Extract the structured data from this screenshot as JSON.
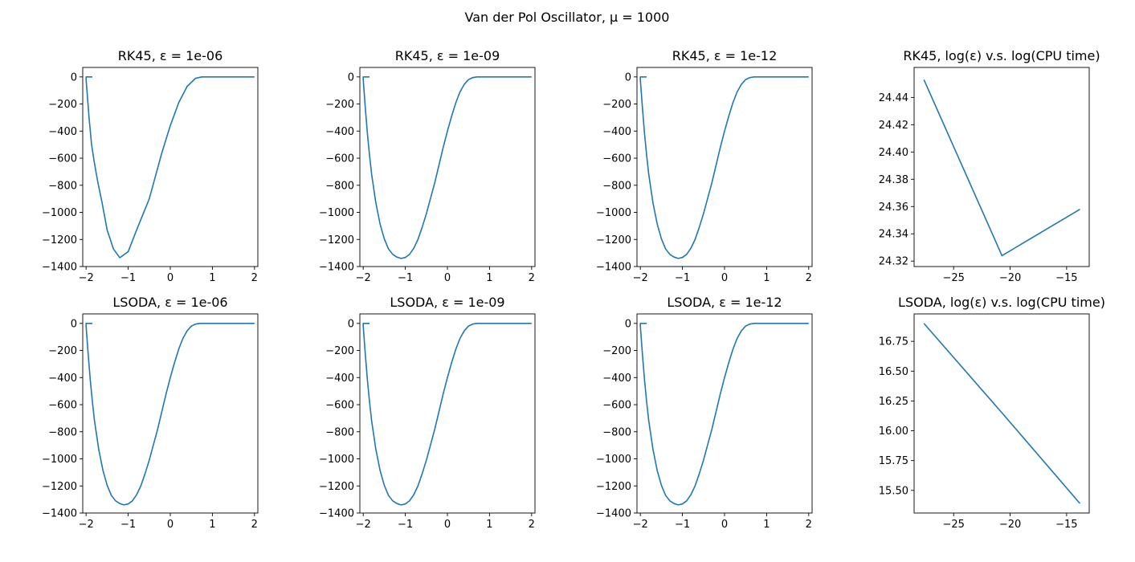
{
  "suptitle": "Van der Pol Oscillator, μ = 1000",
  "colors": {
    "line": "#1f77b4",
    "axes": "#000000"
  },
  "chart_data": [
    {
      "type": "line",
      "title": "RK45, ε = 1e-06",
      "xlim": [
        -2.08,
        2.08
      ],
      "ylim": [
        -1400,
        70
      ],
      "xticks": [
        -2,
        -1,
        0,
        1,
        2
      ],
      "xtick_labels": [
        "−2",
        "−1",
        "0",
        "1",
        "2"
      ],
      "yticks": [
        0,
        -200,
        -400,
        -600,
        -800,
        -1000,
        -1200,
        -1400
      ],
      "ytick_labels": [
        "0",
        "−200",
        "−400",
        "−600",
        "−800",
        "−1000",
        "−1200",
        "−1400"
      ],
      "x": [
        -1.85,
        -2.0,
        -2.0,
        -1.93,
        -1.87,
        -1.8,
        -1.72,
        -1.62,
        -1.5,
        -1.35,
        -1.2,
        -1.0,
        -0.8,
        -0.5,
        -0.2,
        0.0,
        0.2,
        0.4,
        0.6,
        0.75,
        0.88,
        0.95,
        1.0,
        1.2,
        1.6,
        2.0
      ],
      "y": [
        0,
        0,
        -20,
        -300,
        -500,
        -640,
        -780,
        -930,
        -1130,
        -1270,
        -1335,
        -1290,
        -1130,
        -900,
        -560,
        -360,
        -190,
        -70,
        -10,
        0,
        0,
        0,
        0,
        0,
        0,
        0
      ]
    },
    {
      "type": "line",
      "title": "RK45, ε = 1e-09",
      "xlim": [
        -2.08,
        2.08
      ],
      "ylim": [
        -1400,
        70
      ],
      "xticks": [
        -2,
        -1,
        0,
        1,
        2
      ],
      "xtick_labels": [
        "−2",
        "−1",
        "0",
        "1",
        "2"
      ],
      "yticks": [
        0,
        -200,
        -400,
        -600,
        -800,
        -1000,
        -1200,
        -1400
      ],
      "ytick_labels": [
        "0",
        "−200",
        "−400",
        "−600",
        "−800",
        "−1000",
        "−1200",
        "−1400"
      ],
      "x": [
        -1.85,
        -2.0,
        -2.0,
        -1.95,
        -1.9,
        -1.85,
        -1.8,
        -1.7,
        -1.6,
        -1.5,
        -1.4,
        -1.3,
        -1.2,
        -1.1,
        -1.0,
        -0.9,
        -0.8,
        -0.7,
        -0.6,
        -0.5,
        -0.4,
        -0.3,
        -0.2,
        -0.1,
        0.0,
        0.1,
        0.2,
        0.3,
        0.4,
        0.5,
        0.6,
        0.7,
        0.8,
        0.9,
        0.95,
        1.0,
        1.2,
        1.6,
        2.0
      ],
      "y": [
        0,
        0,
        -20,
        -230,
        -420,
        -580,
        -720,
        -930,
        -1085,
        -1195,
        -1270,
        -1310,
        -1330,
        -1340,
        -1333,
        -1310,
        -1265,
        -1200,
        -1110,
        -1010,
        -895,
        -780,
        -650,
        -520,
        -400,
        -290,
        -190,
        -110,
        -55,
        -20,
        -5,
        0,
        0,
        0,
        0,
        0,
        0,
        0,
        0
      ]
    },
    {
      "type": "line",
      "title": "RK45, ε = 1e-12",
      "xlim": [
        -2.08,
        2.08
      ],
      "ylim": [
        -1400,
        70
      ],
      "xticks": [
        -2,
        -1,
        0,
        1,
        2
      ],
      "xtick_labels": [
        "−2",
        "−1",
        "0",
        "1",
        "2"
      ],
      "yticks": [
        0,
        -200,
        -400,
        -600,
        -800,
        -1000,
        -1200,
        -1400
      ],
      "ytick_labels": [
        "0",
        "−200",
        "−400",
        "−600",
        "−800",
        "−1000",
        "−1200",
        "−1400"
      ],
      "x": [
        -1.85,
        -2.0,
        -2.0,
        -1.95,
        -1.9,
        -1.85,
        -1.8,
        -1.7,
        -1.6,
        -1.5,
        -1.4,
        -1.3,
        -1.2,
        -1.1,
        -1.0,
        -0.9,
        -0.8,
        -0.7,
        -0.6,
        -0.5,
        -0.4,
        -0.3,
        -0.2,
        -0.1,
        0.0,
        0.1,
        0.2,
        0.3,
        0.4,
        0.5,
        0.6,
        0.7,
        0.8,
        0.9,
        0.95,
        1.0,
        1.2,
        1.6,
        2.0
      ],
      "y": [
        0,
        0,
        -20,
        -230,
        -420,
        -580,
        -720,
        -930,
        -1085,
        -1195,
        -1270,
        -1310,
        -1330,
        -1340,
        -1333,
        -1310,
        -1265,
        -1200,
        -1110,
        -1010,
        -895,
        -780,
        -650,
        -520,
        -400,
        -290,
        -190,
        -110,
        -55,
        -20,
        -5,
        0,
        0,
        0,
        0,
        0,
        0,
        0,
        0
      ]
    },
    {
      "type": "line",
      "title": "RK45, log(ε) v.s. log(CPU time)",
      "xlim": [
        -28.5,
        -13.0
      ],
      "ylim": [
        24.316,
        24.462
      ],
      "xticks": [
        -25,
        -20,
        -15
      ],
      "xtick_labels": [
        "−25",
        "−20",
        "−15"
      ],
      "yticks": [
        24.32,
        24.34,
        24.36,
        24.38,
        24.4,
        24.42,
        24.44
      ],
      "ytick_labels": [
        "24.32",
        "24.34",
        "24.36",
        "24.38",
        "24.40",
        "24.42",
        "24.44"
      ],
      "x": [
        -27.63,
        -20.72,
        -13.82
      ],
      "y": [
        24.453,
        24.324,
        24.358
      ]
    },
    {
      "type": "line",
      "title": "LSODA, ε = 1e-06",
      "xlim": [
        -2.08,
        2.08
      ],
      "ylim": [
        -1400,
        70
      ],
      "xticks": [
        -2,
        -1,
        0,
        1,
        2
      ],
      "xtick_labels": [
        "−2",
        "−1",
        "0",
        "1",
        "2"
      ],
      "yticks": [
        0,
        -200,
        -400,
        -600,
        -800,
        -1000,
        -1200,
        -1400
      ],
      "ytick_labels": [
        "0",
        "−200",
        "−400",
        "−600",
        "−800",
        "−1000",
        "−1200",
        "−1400"
      ],
      "x": [
        -1.85,
        -2.0,
        -2.0,
        -1.95,
        -1.9,
        -1.85,
        -1.8,
        -1.7,
        -1.6,
        -1.5,
        -1.4,
        -1.3,
        -1.2,
        -1.1,
        -1.0,
        -0.9,
        -0.8,
        -0.7,
        -0.6,
        -0.5,
        -0.4,
        -0.3,
        -0.2,
        -0.1,
        0.0,
        0.1,
        0.2,
        0.3,
        0.4,
        0.5,
        0.6,
        0.7,
        0.8,
        0.9,
        0.95,
        1.0,
        1.2,
        1.6,
        2.0
      ],
      "y": [
        0,
        0,
        -20,
        -230,
        -420,
        -580,
        -720,
        -930,
        -1085,
        -1195,
        -1270,
        -1310,
        -1330,
        -1340,
        -1333,
        -1310,
        -1265,
        -1200,
        -1110,
        -1010,
        -895,
        -780,
        -650,
        -520,
        -400,
        -290,
        -190,
        -110,
        -55,
        -20,
        -5,
        0,
        0,
        0,
        0,
        0,
        0,
        0,
        0
      ]
    },
    {
      "type": "line",
      "title": "LSODA, ε = 1e-09",
      "xlim": [
        -2.08,
        2.08
      ],
      "ylim": [
        -1400,
        70
      ],
      "xticks": [
        -2,
        -1,
        0,
        1,
        2
      ],
      "xtick_labels": [
        "−2",
        "−1",
        "0",
        "1",
        "2"
      ],
      "yticks": [
        0,
        -200,
        -400,
        -600,
        -800,
        -1000,
        -1200,
        -1400
      ],
      "ytick_labels": [
        "0",
        "−200",
        "−400",
        "−600",
        "−800",
        "−1000",
        "−1200",
        "−1400"
      ],
      "x": [
        -1.85,
        -2.0,
        -2.0,
        -1.95,
        -1.9,
        -1.85,
        -1.8,
        -1.7,
        -1.6,
        -1.5,
        -1.4,
        -1.3,
        -1.2,
        -1.1,
        -1.0,
        -0.9,
        -0.8,
        -0.7,
        -0.6,
        -0.5,
        -0.4,
        -0.3,
        -0.2,
        -0.1,
        0.0,
        0.1,
        0.2,
        0.3,
        0.4,
        0.5,
        0.6,
        0.7,
        0.8,
        0.9,
        0.95,
        1.0,
        1.2,
        1.6,
        2.0
      ],
      "y": [
        0,
        0,
        -20,
        -230,
        -420,
        -580,
        -720,
        -930,
        -1085,
        -1195,
        -1270,
        -1310,
        -1330,
        -1340,
        -1333,
        -1310,
        -1265,
        -1200,
        -1110,
        -1010,
        -895,
        -780,
        -650,
        -520,
        -400,
        -290,
        -190,
        -110,
        -55,
        -20,
        -5,
        0,
        0,
        0,
        0,
        0,
        0,
        0,
        0
      ]
    },
    {
      "type": "line",
      "title": "LSODA, ε = 1e-12",
      "xlim": [
        -2.08,
        2.08
      ],
      "ylim": [
        -1400,
        70
      ],
      "xticks": [
        -2,
        -1,
        0,
        1,
        2
      ],
      "xtick_labels": [
        "−2",
        "−1",
        "0",
        "1",
        "2"
      ],
      "yticks": [
        0,
        -200,
        -400,
        -600,
        -800,
        -1000,
        -1200,
        -1400
      ],
      "ytick_labels": [
        "0",
        "−200",
        "−400",
        "−600",
        "−800",
        "−1000",
        "−1200",
        "−1400"
      ],
      "x": [
        -1.85,
        -2.0,
        -2.0,
        -1.95,
        -1.9,
        -1.85,
        -1.8,
        -1.7,
        -1.6,
        -1.5,
        -1.4,
        -1.3,
        -1.2,
        -1.1,
        -1.0,
        -0.9,
        -0.8,
        -0.7,
        -0.6,
        -0.5,
        -0.4,
        -0.3,
        -0.2,
        -0.1,
        0.0,
        0.1,
        0.2,
        0.3,
        0.4,
        0.5,
        0.6,
        0.7,
        0.8,
        0.9,
        0.95,
        1.0,
        1.2,
        1.6,
        2.0
      ],
      "y": [
        0,
        0,
        -20,
        -230,
        -420,
        -580,
        -720,
        -930,
        -1085,
        -1195,
        -1270,
        -1310,
        -1330,
        -1340,
        -1333,
        -1310,
        -1265,
        -1200,
        -1110,
        -1010,
        -895,
        -780,
        -650,
        -520,
        -400,
        -290,
        -190,
        -110,
        -55,
        -20,
        -5,
        0,
        0,
        0,
        0,
        0,
        0,
        0,
        0
      ]
    },
    {
      "type": "line",
      "title": "LSODA, log(ε) v.s. log(CPU time)",
      "xlim": [
        -28.5,
        -13.0
      ],
      "ylim": [
        15.31,
        16.98
      ],
      "xticks": [
        -25,
        -20,
        -15
      ],
      "xtick_labels": [
        "−25",
        "−20",
        "−15"
      ],
      "yticks": [
        15.5,
        15.75,
        16.0,
        16.25,
        16.5,
        16.75
      ],
      "ytick_labels": [
        "15.50",
        "15.75",
        "16.00",
        "16.25",
        "16.50",
        "16.75"
      ],
      "x": [
        -27.63,
        -20.72,
        -13.82
      ],
      "y": [
        16.9,
        16.15,
        15.39
      ]
    }
  ]
}
